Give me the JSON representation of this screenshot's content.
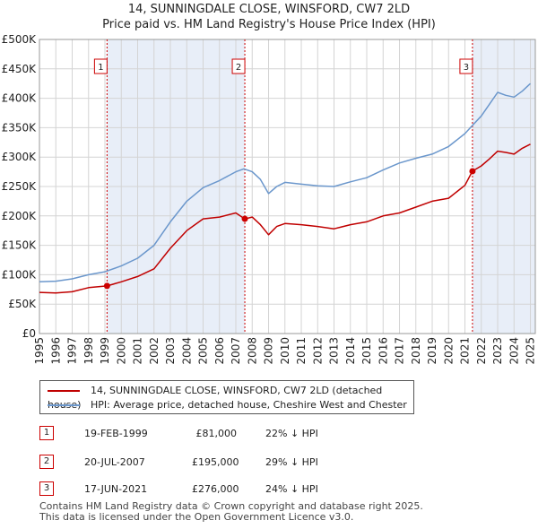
{
  "title_line1": "14, SUNNINGDALE CLOSE, WINSFORD, CW7 2LD",
  "title_line2": "Price paid vs. HM Land Registry's House Price Index (HPI)",
  "colors": {
    "property": "#c00000",
    "hpi": "#6b97cc",
    "shade": "#e8eef8",
    "marker": "#cc0000"
  },
  "legend": {
    "property": "14, SUNNINGDALE CLOSE, WINSFORD, CW7 2LD (detached house)",
    "hpi": "HPI: Average price, detached house, Cheshire West and Chester"
  },
  "transactions": [
    {
      "num": "1",
      "date": "19-FEB-1999",
      "price": "£81,000",
      "hpi": "22% ↓ HPI",
      "x": 1999.13,
      "y": 81000
    },
    {
      "num": "2",
      "date": "20-JUL-2007",
      "price": "£195,000",
      "hpi": "29% ↓ HPI",
      "x": 2007.55,
      "y": 195000
    },
    {
      "num": "3",
      "date": "17-JUN-2021",
      "price": "£276,000",
      "hpi": "24% ↓ HPI",
      "x": 2021.46,
      "y": 276000
    }
  ],
  "footer_line1": "Contains HM Land Registry data © Crown copyright and database right 2025.",
  "footer_line2": "This data is licensed under the Open Government Licence v3.0.",
  "chart_data": {
    "type": "line",
    "title": "14, SUNNINGDALE CLOSE, WINSFORD, CW7 2LD — Price paid vs. HM Land Registry's House Price Index (HPI)",
    "xlabel": "",
    "ylabel": "",
    "xlim": [
      1995,
      2025.3
    ],
    "ylim": [
      0,
      500000
    ],
    "yticks": [
      0,
      50000,
      100000,
      150000,
      200000,
      250000,
      300000,
      350000,
      400000,
      450000,
      500000
    ],
    "ytick_labels": [
      "£0",
      "£50K",
      "£100K",
      "£150K",
      "£200K",
      "£250K",
      "£300K",
      "£350K",
      "£400K",
      "£450K",
      "£500K"
    ],
    "xticks": [
      1995,
      1996,
      1997,
      1998,
      1999,
      2000,
      2001,
      2002,
      2003,
      2004,
      2005,
      2006,
      2007,
      2008,
      2009,
      2010,
      2011,
      2012,
      2013,
      2014,
      2015,
      2016,
      2017,
      2018,
      2019,
      2020,
      2021,
      2022,
      2023,
      2024,
      2025
    ],
    "grid": true,
    "legend_position": "bottom",
    "shaded_ranges": [
      [
        1999.13,
        2007.55
      ],
      [
        2021.46,
        2025.3
      ]
    ],
    "series": [
      {
        "name": "14, SUNNINGDALE CLOSE, WINSFORD, CW7 2LD (detached house)",
        "x": [
          1995,
          1996,
          1997,
          1998,
          1999.13,
          2000,
          2001,
          2002,
          2003,
          2004,
          2005,
          2006,
          2007,
          2007.55,
          2008,
          2008.5,
          2009,
          2009.5,
          2010,
          2011,
          2012,
          2013,
          2014,
          2015,
          2016,
          2017,
          2018,
          2019,
          2020,
          2021,
          2021.46,
          2022,
          2022.5,
          2023,
          2023.5,
          2024,
          2024.5,
          2025
        ],
        "values": [
          70000,
          69000,
          71000,
          78000,
          81000,
          88000,
          97000,
          110000,
          145000,
          175000,
          195000,
          198000,
          205000,
          195000,
          198000,
          185000,
          168000,
          182000,
          187000,
          185000,
          182000,
          178000,
          185000,
          190000,
          200000,
          205000,
          215000,
          225000,
          230000,
          252000,
          276000,
          285000,
          297000,
          310000,
          308000,
          305000,
          315000,
          322000
        ]
      },
      {
        "name": "HPI: Average price, detached house, Cheshire West and Chester",
        "x": [
          1995,
          1996,
          1997,
          1998,
          1999,
          2000,
          2001,
          2002,
          2003,
          2004,
          2005,
          2006,
          2007,
          2007.5,
          2008,
          2008.5,
          2009,
          2009.5,
          2010,
          2011,
          2012,
          2013,
          2014,
          2015,
          2016,
          2017,
          2018,
          2019,
          2020,
          2021,
          2021.5,
          2022,
          2022.5,
          2023,
          2023.5,
          2024,
          2024.5,
          2025
        ],
        "values": [
          88000,
          89000,
          93000,
          100000,
          105000,
          115000,
          128000,
          150000,
          190000,
          225000,
          248000,
          260000,
          275000,
          280000,
          275000,
          262000,
          238000,
          250000,
          257000,
          254000,
          251000,
          250000,
          258000,
          265000,
          278000,
          290000,
          298000,
          305000,
          318000,
          340000,
          355000,
          370000,
          390000,
          410000,
          405000,
          402000,
          412000,
          425000
        ]
      }
    ]
  }
}
